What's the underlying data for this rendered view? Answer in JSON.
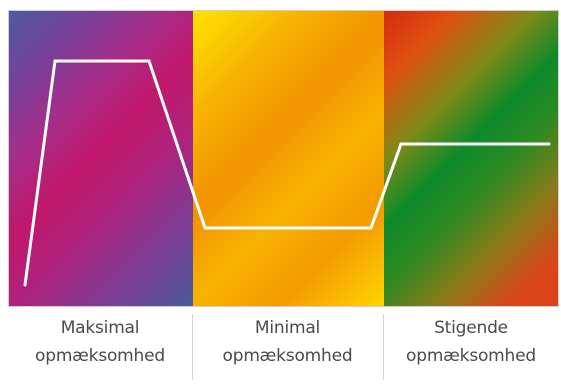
{
  "panels": [
    {
      "id": "maksimal",
      "label_line1": "Maksimal",
      "label_line2": "opmæksomhed"
    },
    {
      "id": "minimal",
      "label_line1": "Minimal",
      "label_line2": "opmæksomhed"
    },
    {
      "id": "stigende",
      "label_line1": "Stigende",
      "label_line2": "opmæksomhed"
    }
  ],
  "colors": {
    "trace_line": "#ffffff",
    "label_text": "#4a4a4a"
  }
}
